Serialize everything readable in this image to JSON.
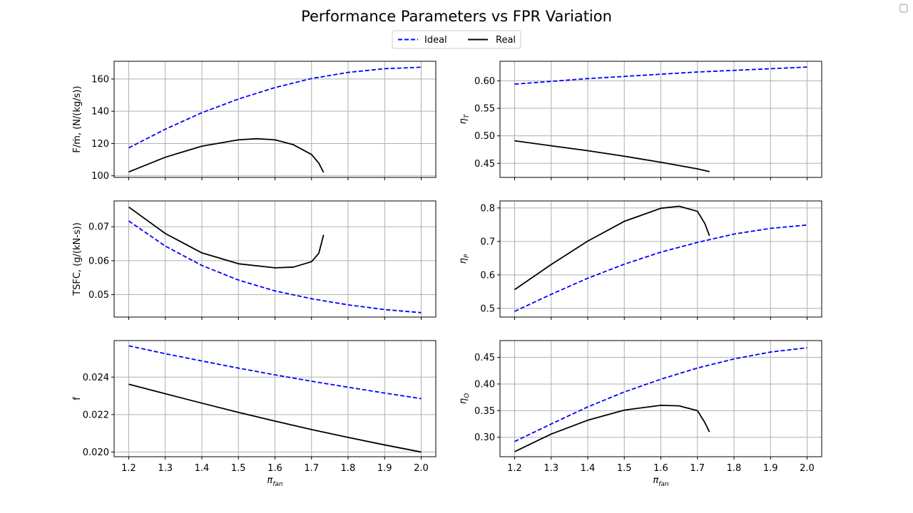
{
  "figure": {
    "title": "Performance Parameters vs FPR Variation"
  },
  "legend": {
    "placement": "top-center",
    "entries": [
      {
        "label": "Ideal",
        "color": "#0000ff",
        "style": "dashed"
      },
      {
        "label": "Real",
        "color": "#000000",
        "style": "solid"
      }
    ]
  },
  "colors": {
    "ideal": "#0000ff",
    "real": "#000000",
    "grid": "#b0b0b0"
  },
  "chart_data": [
    {
      "type": "line",
      "ylabel": "F/ṁ, (N/(kg/s))",
      "xlabel": "",
      "xlim": [
        1.16,
        2.04
      ],
      "ylim": [
        99,
        171
      ],
      "xticks": [
        "1.2",
        "1.3",
        "1.4",
        "1.5",
        "1.6",
        "1.7",
        "1.8",
        "1.9",
        "2.0"
      ],
      "xtick_labels_shown": false,
      "yticks": [
        "100",
        "120",
        "140",
        "160"
      ],
      "grid": true,
      "series": [
        {
          "name": "Ideal",
          "x": [
            1.2,
            1.3,
            1.4,
            1.5,
            1.6,
            1.7,
            1.8,
            1.9,
            2.0
          ],
          "y": [
            117.3,
            128.9,
            139.1,
            147.6,
            154.7,
            160.3,
            164.1,
            166.4,
            167.3
          ]
        },
        {
          "name": "Real",
          "x": [
            1.2,
            1.3,
            1.4,
            1.5,
            1.55,
            1.6,
            1.65,
            1.7,
            1.72,
            1.733
          ],
          "y": [
            102.4,
            111.5,
            118.4,
            122.3,
            123.0,
            122.3,
            119.3,
            113.2,
            107.8,
            102.1
          ]
        }
      ]
    },
    {
      "type": "line",
      "ylabel": "η_T",
      "xlabel": "",
      "xlim": [
        1.16,
        2.04
      ],
      "ylim": [
        0.4245,
        0.6355
      ],
      "xticks": [
        "1.2",
        "1.3",
        "1.4",
        "1.5",
        "1.6",
        "1.7",
        "1.8",
        "1.9",
        "2.0"
      ],
      "xtick_labels_shown": false,
      "yticks": [
        "0.45",
        "0.50",
        "0.55",
        "0.60"
      ],
      "grid": true,
      "series": [
        {
          "name": "Ideal",
          "x": [
            1.2,
            1.3,
            1.4,
            1.5,
            1.6,
            1.7,
            1.8,
            1.9,
            2.0
          ],
          "y": [
            0.594,
            0.599,
            0.604,
            0.608,
            0.612,
            0.616,
            0.619,
            0.622,
            0.625
          ]
        },
        {
          "name": "Real",
          "x": [
            1.2,
            1.3,
            1.4,
            1.5,
            1.6,
            1.7,
            1.733
          ],
          "y": [
            0.491,
            0.482,
            0.473,
            0.463,
            0.452,
            0.44,
            0.435
          ]
        }
      ]
    },
    {
      "type": "line",
      "ylabel": "TSFC, (g/(kN-s))",
      "xlabel": "",
      "xlim": [
        1.16,
        2.04
      ],
      "ylim": [
        0.0434,
        0.0776
      ],
      "xticks": [
        "1.2",
        "1.3",
        "1.4",
        "1.5",
        "1.6",
        "1.7",
        "1.8",
        "1.9",
        "2.0"
      ],
      "xtick_labels_shown": false,
      "yticks": [
        "0.05",
        "0.06",
        "0.07"
      ],
      "grid": true,
      "series": [
        {
          "name": "Ideal",
          "x": [
            1.2,
            1.3,
            1.4,
            1.5,
            1.6,
            1.7,
            1.8,
            1.9,
            2.0
          ],
          "y": [
            0.0717,
            0.0643,
            0.0586,
            0.0543,
            0.0511,
            0.0488,
            0.047,
            0.0456,
            0.0447
          ]
        },
        {
          "name": "Real",
          "x": [
            1.2,
            1.3,
            1.4,
            1.5,
            1.6,
            1.65,
            1.7,
            1.72,
            1.733
          ],
          "y": [
            0.0758,
            0.068,
            0.0623,
            0.0591,
            0.0579,
            0.0581,
            0.0597,
            0.0622,
            0.0676
          ]
        }
      ]
    },
    {
      "type": "line",
      "ylabel": "η_P",
      "xlabel": "",
      "xlim": [
        1.16,
        2.04
      ],
      "ylim": [
        0.474,
        0.821
      ],
      "xticks": [
        "1.2",
        "1.3",
        "1.4",
        "1.5",
        "1.6",
        "1.7",
        "1.8",
        "1.9",
        "2.0"
      ],
      "xtick_labels_shown": false,
      "yticks": [
        "0.5",
        "0.6",
        "0.7",
        "0.8"
      ],
      "grid": true,
      "series": [
        {
          "name": "Ideal",
          "x": [
            1.2,
            1.3,
            1.4,
            1.5,
            1.6,
            1.7,
            1.8,
            1.9,
            2.0
          ],
          "y": [
            0.491,
            0.542,
            0.59,
            0.632,
            0.668,
            0.697,
            0.722,
            0.739,
            0.749
          ]
        },
        {
          "name": "Real",
          "x": [
            1.2,
            1.3,
            1.4,
            1.5,
            1.6,
            1.65,
            1.7,
            1.72,
            1.733
          ],
          "y": [
            0.556,
            0.631,
            0.701,
            0.76,
            0.799,
            0.805,
            0.79,
            0.754,
            0.717
          ]
        }
      ]
    },
    {
      "type": "line",
      "ylabel": "f",
      "xlabel": "π_fan",
      "xlim": [
        1.16,
        2.04
      ],
      "ylim": [
        0.01975,
        0.02595
      ],
      "xticks": [
        "1.2",
        "1.3",
        "1.4",
        "1.5",
        "1.6",
        "1.7",
        "1.8",
        "1.9",
        "2.0"
      ],
      "xtick_labels_shown": true,
      "yticks": [
        "0.020",
        "0.022",
        "0.024"
      ],
      "grid": true,
      "series": [
        {
          "name": "Ideal",
          "x": [
            1.2,
            1.3,
            1.4,
            1.5,
            1.6,
            1.7,
            1.8,
            1.9,
            2.0
          ],
          "y": [
            0.02567,
            0.02525,
            0.02486,
            0.02448,
            0.02412,
            0.02378,
            0.02346,
            0.02315,
            0.02285
          ]
        },
        {
          "name": "Real",
          "x": [
            1.2,
            1.3,
            1.4,
            1.5,
            1.6,
            1.7,
            1.8,
            1.9,
            2.0
          ],
          "y": [
            0.02362,
            0.02311,
            0.02261,
            0.02212,
            0.02165,
            0.0212,
            0.02078,
            0.02038,
            0.02
          ]
        }
      ]
    },
    {
      "type": "line",
      "ylabel": "η_O",
      "xlabel": "π_fan",
      "xlim": [
        1.16,
        2.04
      ],
      "ylim": [
        0.2635,
        0.4815
      ],
      "xticks": [
        "1.2",
        "1.3",
        "1.4",
        "1.5",
        "1.6",
        "1.7",
        "1.8",
        "1.9",
        "2.0"
      ],
      "xtick_labels_shown": true,
      "yticks": [
        "0.30",
        "0.35",
        "0.40",
        "0.45"
      ],
      "grid": true,
      "series": [
        {
          "name": "Ideal",
          "x": [
            1.2,
            1.3,
            1.4,
            1.5,
            1.6,
            1.7,
            1.8,
            1.9,
            2.0
          ],
          "y": [
            0.292,
            0.325,
            0.357,
            0.385,
            0.409,
            0.43,
            0.447,
            0.46,
            0.468
          ]
        },
        {
          "name": "Real",
          "x": [
            1.2,
            1.3,
            1.4,
            1.5,
            1.6,
            1.65,
            1.7,
            1.72,
            1.733
          ],
          "y": [
            0.273,
            0.306,
            0.332,
            0.351,
            0.36,
            0.359,
            0.35,
            0.328,
            0.31
          ]
        }
      ]
    }
  ]
}
